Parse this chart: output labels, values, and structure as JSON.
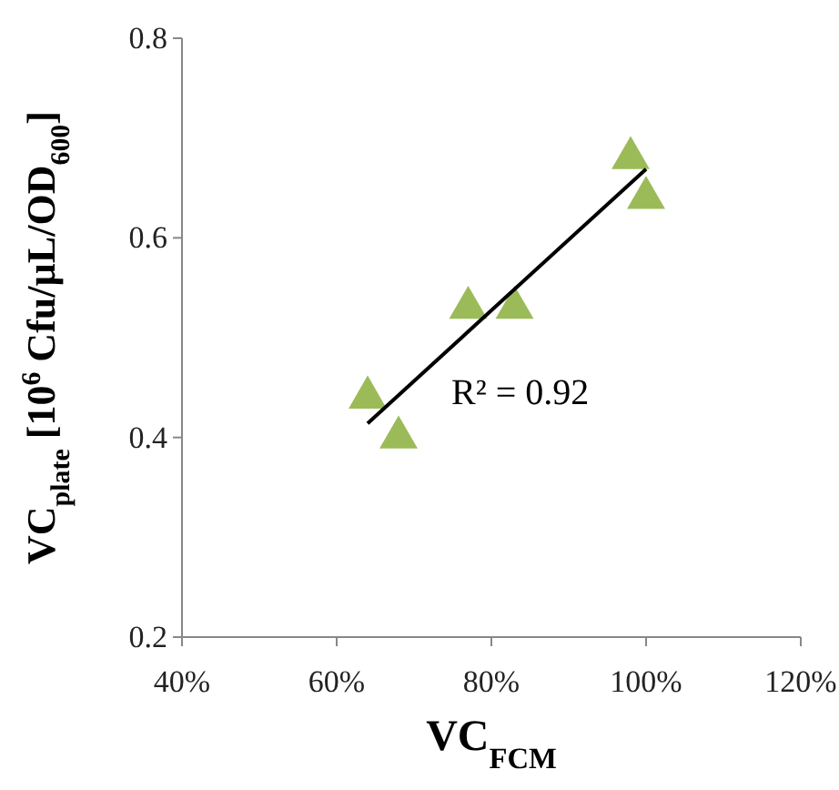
{
  "chart_data": {
    "type": "scatter",
    "xlabel": "VC$_{FCM}$",
    "ylabel": "VC$_{plate}$ [10$^{6}$ Cfu/µL/OD$_{600}$]",
    "xlim": [
      40,
      120
    ],
    "ylim": [
      0.2,
      0.8
    ],
    "xticks": [
      {
        "value": 40,
        "label": "40%"
      },
      {
        "value": 60,
        "label": "60%"
      },
      {
        "value": 80,
        "label": "80%"
      },
      {
        "value": 100,
        "label": "100%"
      },
      {
        "value": 120,
        "label": "120%"
      }
    ],
    "yticks": [
      {
        "value": 0.2,
        "label": "0.2"
      },
      {
        "value": 0.4,
        "label": "0.4"
      },
      {
        "value": 0.6,
        "label": "0.6"
      },
      {
        "value": 0.8,
        "label": "0.8"
      }
    ],
    "grid": false,
    "series": [
      {
        "marker": "triangle",
        "color": "#9bbb59",
        "x": [
          64,
          68,
          77,
          83,
          98,
          100
        ],
        "values": [
          0.44,
          0.4,
          0.53,
          0.53,
          0.68,
          0.64
        ]
      },
      {
        "type": "line",
        "color": "#000000",
        "x": [
          64,
          100
        ],
        "values": [
          0.414,
          0.669
        ]
      }
    ],
    "annotations": [
      "R² = 0.92"
    ]
  }
}
